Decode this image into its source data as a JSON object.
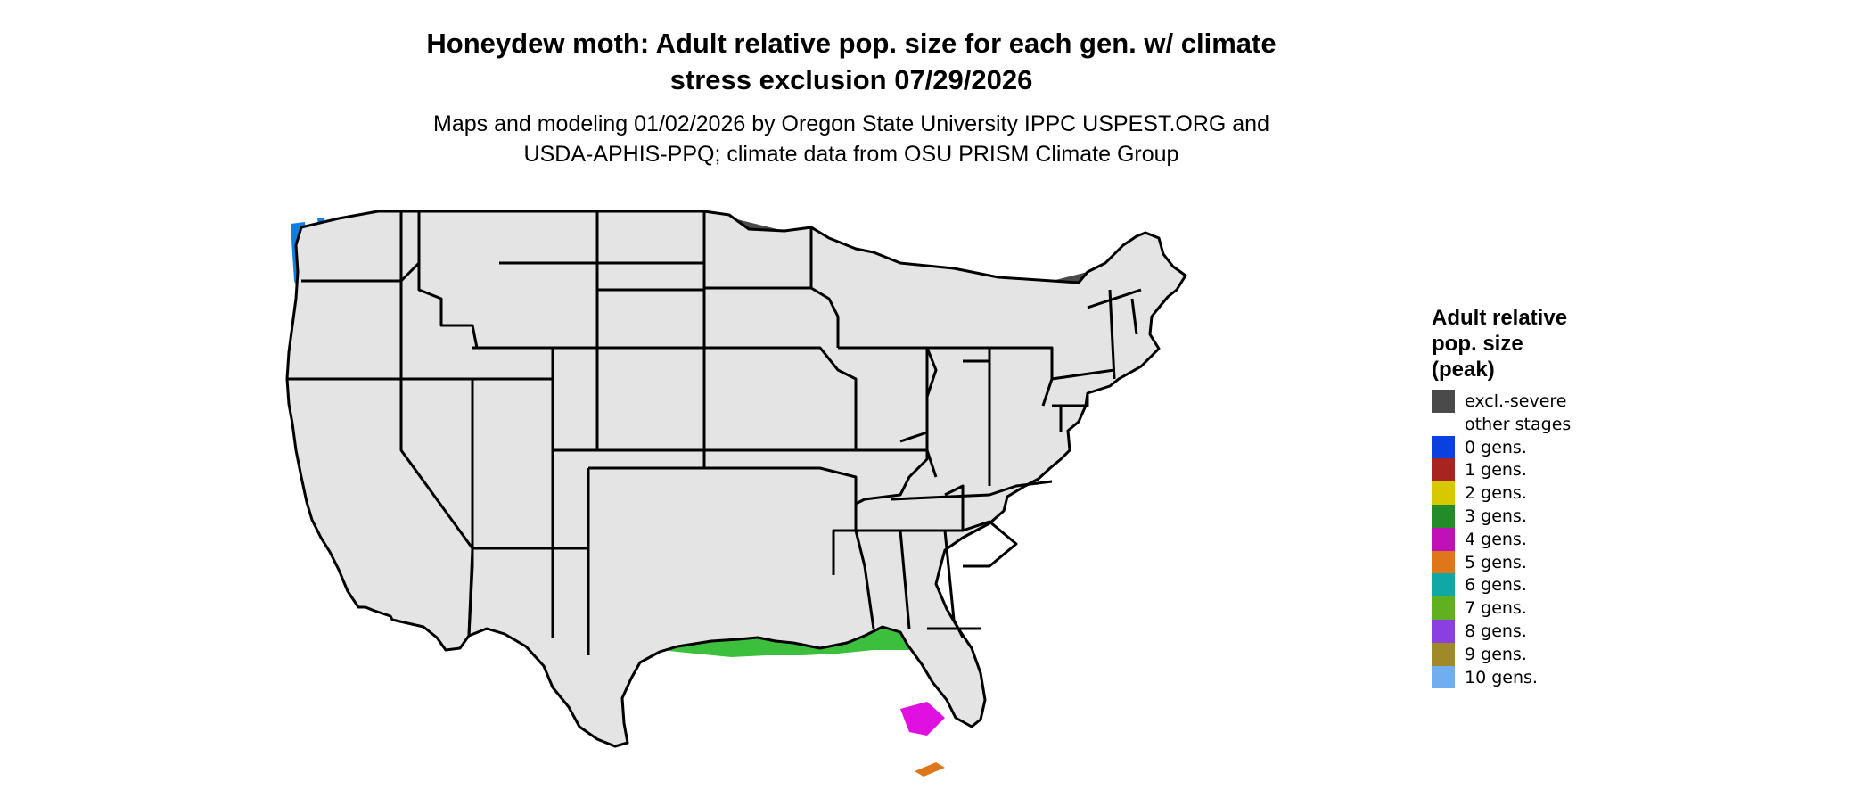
{
  "title": {
    "line1": "Honeydew moth: Adult relative pop. size for each gen. w/ climate",
    "line2": "stress exclusion 07/29/2026"
  },
  "subtitle": {
    "line1": "Maps and modeling 01/02/2026 by Oregon State University IPPC USPEST.ORG and",
    "line2": "USDA-APHIS-PPQ; climate data from OSU PRISM Climate Group"
  },
  "legend": {
    "title_lines": [
      "Adult relative",
      "pop. size",
      "(peak)"
    ],
    "items": [
      {
        "label": "excl.-severe",
        "color": "#4a4a4a"
      },
      {
        "label": "other stages",
        "color": "#ffffff"
      },
      {
        "label": "0 gens.",
        "color": "#0a3fe0"
      },
      {
        "label": "1 gens.",
        "color": "#a82420"
      },
      {
        "label": "2 gens.",
        "color": "#d8c800"
      },
      {
        "label": "3 gens.",
        "color": "#238b2a"
      },
      {
        "label": "4 gens.",
        "color": "#c010b8"
      },
      {
        "label": "5 gens.",
        "color": "#e0761a"
      },
      {
        "label": "6 gens.",
        "color": "#10a8a4"
      },
      {
        "label": "7 gens.",
        "color": "#60b020"
      },
      {
        "label": "8 gens.",
        "color": "#8a40e0"
      },
      {
        "label": "9 gens.",
        "color": "#a08a28"
      },
      {
        "label": "10 gens.",
        "color": "#70aef0"
      }
    ]
  },
  "map": {
    "region": "Contiguous United States",
    "base_color": "#e4e4e4",
    "excluded_color": "#4a4a4a",
    "gen1_color": "#e83a10",
    "gen2_color": "#ffff00",
    "gen3_color": "#3cbf3c",
    "gen4_color": "#e010e0",
    "gen0_color": "#1080e0",
    "border_color": "#000000"
  }
}
